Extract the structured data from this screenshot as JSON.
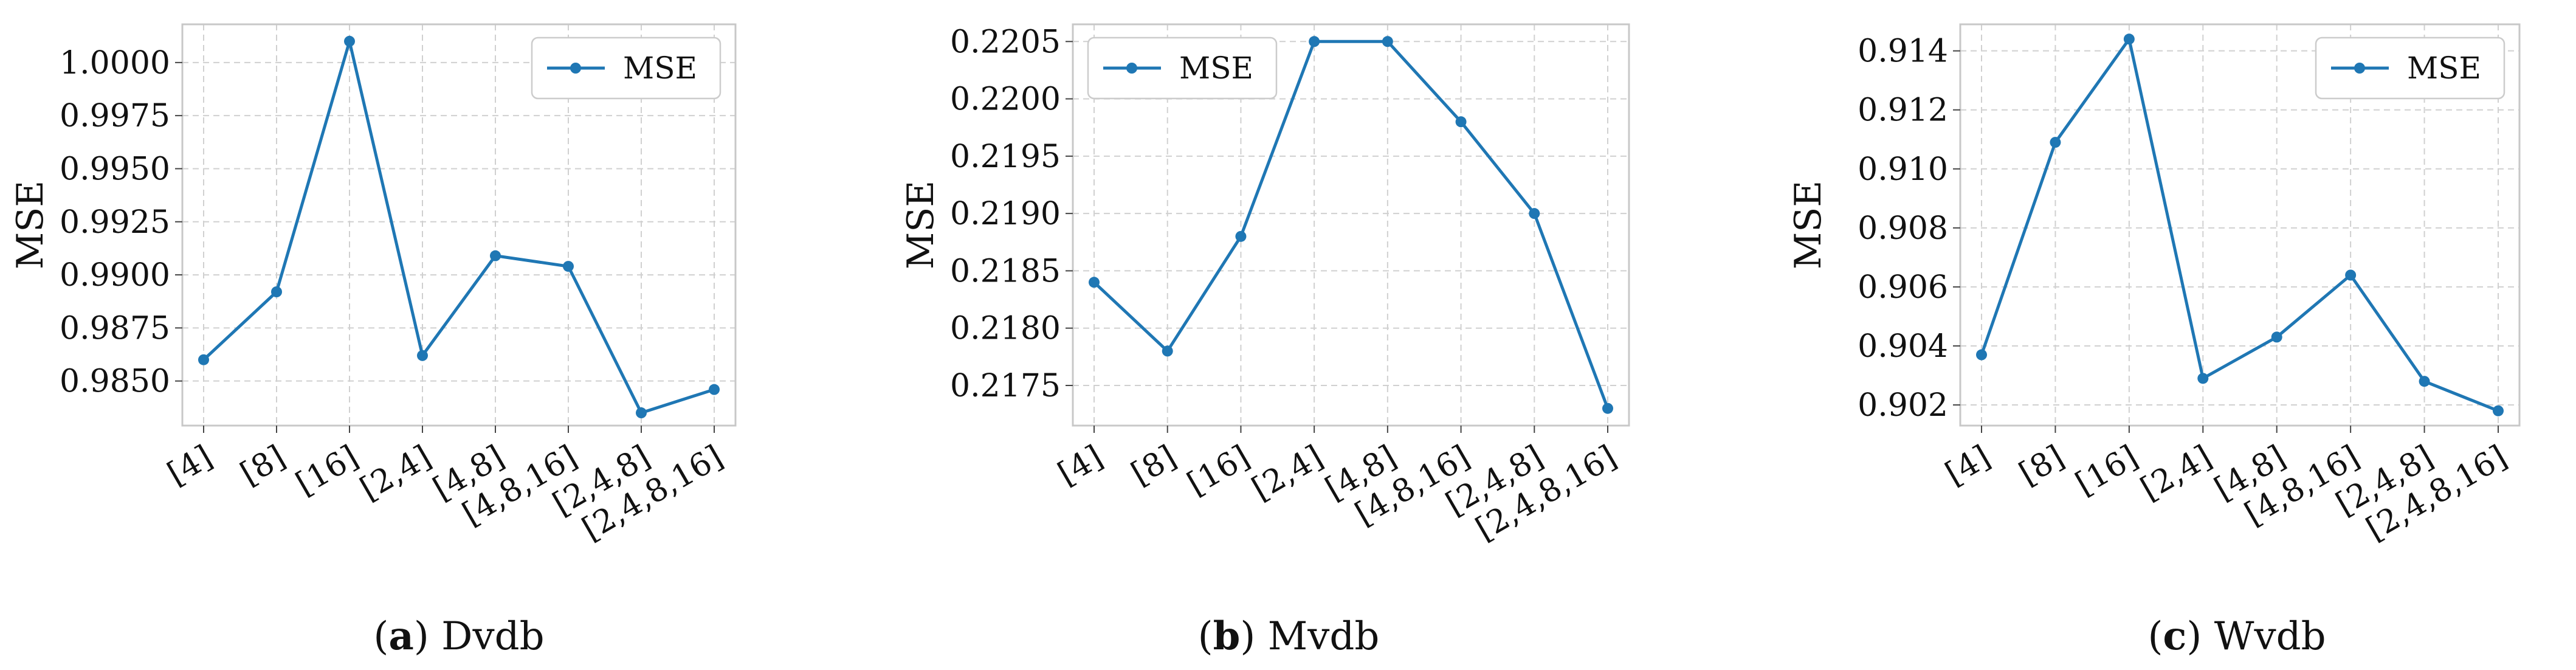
{
  "chart_data": [
    {
      "type": "line",
      "categories": [
        "[4]",
        "[8]",
        "[16]",
        "[2,4]",
        "[4,8]",
        "[4,8,16]",
        "[2,4,8]",
        "[2,4,8,16]"
      ],
      "series": [
        {
          "name": "MSE",
          "values": [
            0.986,
            0.9892,
            1.001,
            0.9862,
            0.9909,
            0.9904,
            0.9835,
            0.9846
          ]
        }
      ],
      "ylabel": "MSE",
      "ylim": [
        0.9829,
        1.0018
      ],
      "yticks": [
        0.985,
        0.9875,
        0.99,
        0.9925,
        0.995,
        0.9975,
        1.0
      ],
      "ytick_labels": [
        "0.9850",
        "0.9875",
        "0.9900",
        "0.9925",
        "0.9950",
        "0.9975",
        "1.0000"
      ],
      "legend_position": "top-right",
      "grid": true,
      "caption_label": "(a)",
      "caption_text": "Dvdb"
    },
    {
      "type": "line",
      "categories": [
        "[4]",
        "[8]",
        "[16]",
        "[2,4]",
        "[4,8]",
        "[4,8,16]",
        "[2,4,8]",
        "[2,4,8,16]"
      ],
      "series": [
        {
          "name": "MSE",
          "values": [
            0.2184,
            0.2178,
            0.2188,
            0.2205,
            0.2205,
            0.2198,
            0.219,
            0.2173
          ]
        }
      ],
      "ylabel": "MSE",
      "ylim": [
        0.21715,
        0.22065
      ],
      "yticks": [
        0.2175,
        0.218,
        0.2185,
        0.219,
        0.2195,
        0.22,
        0.2205
      ],
      "ytick_labels": [
        "0.2175",
        "0.2180",
        "0.2185",
        "0.2190",
        "0.2195",
        "0.2200",
        "0.2205"
      ],
      "legend_position": "top-left",
      "grid": true,
      "caption_label": "(b)",
      "caption_text": "Mvdb"
    },
    {
      "type": "line",
      "categories": [
        "[4]",
        "[8]",
        "[16]",
        "[2,4]",
        "[4,8]",
        "[4,8,16]",
        "[2,4,8]",
        "[2,4,8,16]"
      ],
      "series": [
        {
          "name": "MSE",
          "values": [
            0.9037,
            0.9109,
            0.9144,
            0.9029,
            0.9043,
            0.9064,
            0.9028,
            0.9018
          ]
        }
      ],
      "ylabel": "MSE",
      "ylim": [
        0.9013,
        0.9149
      ],
      "yticks": [
        0.902,
        0.904,
        0.906,
        0.908,
        0.91,
        0.912,
        0.914
      ],
      "ytick_labels": [
        "0.902",
        "0.904",
        "0.906",
        "0.908",
        "0.910",
        "0.912",
        "0.914"
      ],
      "legend_position": "top-right",
      "grid": true,
      "caption_label": "(c)",
      "caption_text": "Wvdb"
    }
  ],
  "colors": {
    "line": "#1f77b4",
    "grid": "#d0d0d0",
    "frame": "#c8c8c8"
  }
}
